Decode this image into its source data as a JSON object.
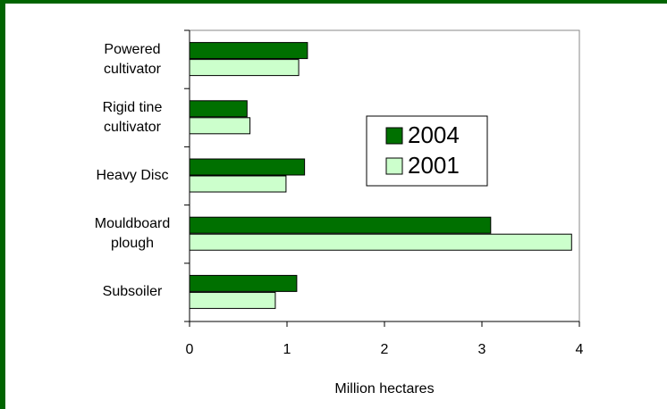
{
  "chart_data": {
    "type": "hbar",
    "categories": [
      "Powered cultivator",
      "Rigid tine cultivator",
      "Heavy Disc",
      "Mouldboard plough",
      "Subsoiler"
    ],
    "series": [
      {
        "name": "2004",
        "color": "#007000",
        "values": [
          1.21,
          0.59,
          1.18,
          3.09,
          1.1
        ]
      },
      {
        "name": "2001",
        "color": "#ccffcc",
        "values": [
          1.12,
          0.62,
          0.99,
          3.92,
          0.88
        ]
      }
    ],
    "xlabel": "Million hectares",
    "xlim": [
      0,
      4
    ],
    "xticks": [
      0,
      1,
      2,
      3,
      4
    ],
    "legend": "center-right"
  }
}
